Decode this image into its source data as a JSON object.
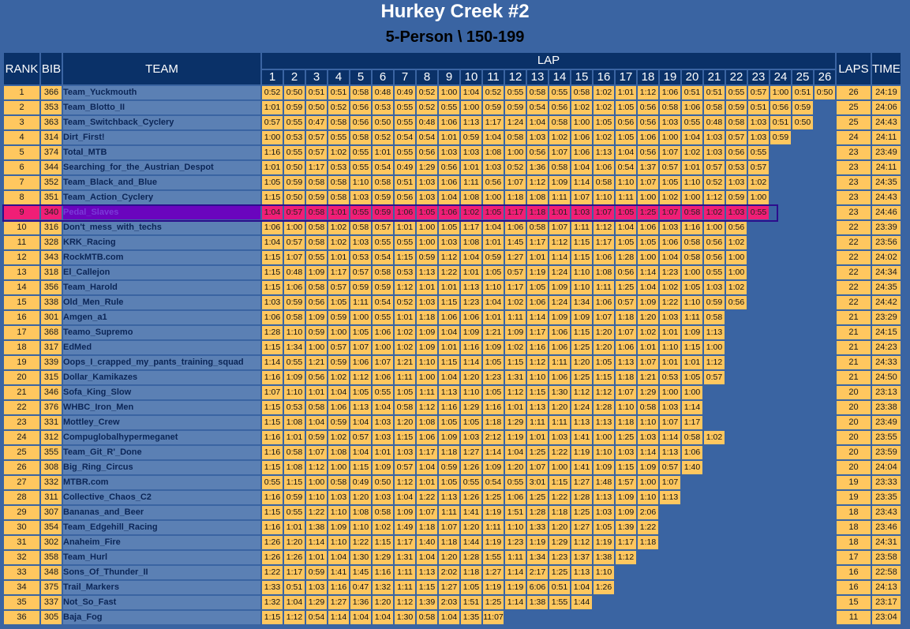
{
  "header": {
    "title": "Hurkey Creek #2",
    "subtitle": "5-Person \\ 150-199"
  },
  "columns": {
    "rank": "RANK",
    "bib": "BIB",
    "team": "TEAM",
    "lap": "LAP",
    "laps": "LAPS",
    "time": "TIME",
    "lap_numbers": [
      "1",
      "2",
      "3",
      "4",
      "5",
      "6",
      "7",
      "8",
      "9",
      "10",
      "11",
      "12",
      "13",
      "14",
      "15",
      "16",
      "17",
      "18",
      "19",
      "20",
      "21",
      "22",
      "23",
      "24",
      "25",
      "26"
    ]
  },
  "highlight_color": "#f01e76",
  "highlighted_rank": "9",
  "rows": [
    {
      "rank": "1",
      "bib": "366",
      "team": "Team_Yuckmouth",
      "splits": [
        "0:52",
        "0:50",
        "0:51",
        "0:51",
        "0:58",
        "0:48",
        "0:49",
        "0:52",
        "1:00",
        "1:04",
        "0:52",
        "0:55",
        "0:58",
        "0:55",
        "0:58",
        "1:02",
        "1:01",
        "1:12",
        "1:06",
        "0:51",
        "0:51",
        "0:55",
        "0:57",
        "1:00",
        "0:51",
        "0:50"
      ],
      "laps": "26",
      "time": "24:19"
    },
    {
      "rank": "2",
      "bib": "353",
      "team": "Team_Blotto_II",
      "splits": [
        "1:01",
        "0:59",
        "0:50",
        "0:52",
        "0:56",
        "0:53",
        "0:55",
        "0:52",
        "0:55",
        "1:00",
        "0:59",
        "0:59",
        "0:54",
        "0:56",
        "1:02",
        "1:02",
        "1:05",
        "0:56",
        "0:58",
        "1:06",
        "0:58",
        "0:59",
        "0:51",
        "0:56",
        "0:59"
      ],
      "laps": "25",
      "time": "24:06"
    },
    {
      "rank": "3",
      "bib": "363",
      "team": "Team_Switchback_Cyclery",
      "splits": [
        "0:57",
        "0:55",
        "0:47",
        "0:58",
        "0:56",
        "0:50",
        "0:55",
        "0:48",
        "1:06",
        "1:13",
        "1:17",
        "1:24",
        "1:04",
        "0:58",
        "1:00",
        "1:05",
        "0:56",
        "0:56",
        "1:03",
        "0:55",
        "0:48",
        "0:58",
        "1:03",
        "0:51",
        "0:50"
      ],
      "laps": "25",
      "time": "24:43"
    },
    {
      "rank": "4",
      "bib": "314",
      "team": "Dirt_First!",
      "splits": [
        "1:00",
        "0:53",
        "0:57",
        "0:55",
        "0:58",
        "0:52",
        "0:54",
        "0:54",
        "1:01",
        "0:59",
        "1:04",
        "0:58",
        "1:03",
        "1:02",
        "1:06",
        "1:02",
        "1:05",
        "1:06",
        "1:00",
        "1:04",
        "1:03",
        "0:57",
        "1:03",
        "0:59"
      ],
      "laps": "24",
      "time": "24:11"
    },
    {
      "rank": "5",
      "bib": "374",
      "team": "Total_MTB",
      "splits": [
        "1:16",
        "0:55",
        "0:57",
        "1:02",
        "0:55",
        "1:01",
        "0:55",
        "0:56",
        "1:03",
        "1:03",
        "1:08",
        "1:00",
        "0:56",
        "1:07",
        "1:06",
        "1:13",
        "1:04",
        "0:56",
        "1:07",
        "1:02",
        "1:03",
        "0:56",
        "0:55"
      ],
      "laps": "23",
      "time": "23:49"
    },
    {
      "rank": "6",
      "bib": "344",
      "team": "Searching_for_the_Austrian_Despot",
      "splits": [
        "1:01",
        "0:50",
        "1:17",
        "0:53",
        "0:55",
        "0:54",
        "0:49",
        "1:29",
        "0:56",
        "1:01",
        "1:03",
        "0:52",
        "1:36",
        "0:58",
        "1:04",
        "1:06",
        "0:54",
        "1:37",
        "0:57",
        "1:01",
        "0:57",
        "0:53",
        "0:57"
      ],
      "laps": "23",
      "time": "24:11"
    },
    {
      "rank": "7",
      "bib": "352",
      "team": "Team_Black_and_Blue",
      "splits": [
        "1:05",
        "0:59",
        "0:58",
        "0:58",
        "1:10",
        "0:58",
        "0:51",
        "1:03",
        "1:06",
        "1:11",
        "0:56",
        "1:07",
        "1:12",
        "1:09",
        "1:14",
        "0:58",
        "1:10",
        "1:07",
        "1:05",
        "1:10",
        "0:52",
        "1:03",
        "1:02"
      ],
      "laps": "23",
      "time": "24:35"
    },
    {
      "rank": "8",
      "bib": "351",
      "team": "Team_Action_Cyclery",
      "splits": [
        "1:15",
        "0:50",
        "0:59",
        "0:58",
        "1:03",
        "0:59",
        "0:56",
        "1:03",
        "1:04",
        "1:08",
        "1:00",
        "1:18",
        "1:08",
        "1:11",
        "1:07",
        "1:10",
        "1:11",
        "1:00",
        "1:02",
        "1:00",
        "1:12",
        "0:59",
        "1:00"
      ],
      "laps": "23",
      "time": "24:43"
    },
    {
      "rank": "9",
      "bib": "340",
      "team": "Pedal_Slaves",
      "splits": [
        "1:04",
        "0:57",
        "0:58",
        "1:01",
        "0:55",
        "0:59",
        "1:06",
        "1:05",
        "1:06",
        "1:02",
        "1:05",
        "1:17",
        "1:18",
        "1:01",
        "1:03",
        "1:07",
        "1:05",
        "1:25",
        "1:07",
        "0:58",
        "1:02",
        "1:03",
        "0:55"
      ],
      "laps": "23",
      "time": "24:46"
    },
    {
      "rank": "10",
      "bib": "316",
      "team": "Don't_mess_with_techs",
      "splits": [
        "1:06",
        "1:00",
        "0:58",
        "1:02",
        "0:58",
        "0:57",
        "1:01",
        "1:00",
        "1:05",
        "1:17",
        "1:04",
        "1:06",
        "0:58",
        "1:07",
        "1:11",
        "1:12",
        "1:04",
        "1:06",
        "1:03",
        "1:16",
        "1:00",
        "0:56"
      ],
      "laps": "22",
      "time": "23:39"
    },
    {
      "rank": "11",
      "bib": "328",
      "team": "KRK_Racing",
      "splits": [
        "1:04",
        "0:57",
        "0:58",
        "1:02",
        "1:03",
        "0:55",
        "0:55",
        "1:00",
        "1:03",
        "1:08",
        "1:01",
        "1:45",
        "1:17",
        "1:12",
        "1:15",
        "1:17",
        "1:05",
        "1:05",
        "1:06",
        "0:58",
        "0:56",
        "1:02"
      ],
      "laps": "22",
      "time": "23:56"
    },
    {
      "rank": "12",
      "bib": "343",
      "team": "RockMTB.com",
      "splits": [
        "1:15",
        "1:07",
        "0:55",
        "1:01",
        "0:53",
        "0:54",
        "1:15",
        "0:59",
        "1:12",
        "1:04",
        "0:59",
        "1:27",
        "1:01",
        "1:14",
        "1:15",
        "1:06",
        "1:28",
        "1:00",
        "1:04",
        "0:58",
        "0:56",
        "1:00"
      ],
      "laps": "22",
      "time": "24:02"
    },
    {
      "rank": "13",
      "bib": "318",
      "team": "El_Callejon",
      "splits": [
        "1:15",
        "0:48",
        "1:09",
        "1:17",
        "0:57",
        "0:58",
        "0:53",
        "1:13",
        "1:22",
        "1:01",
        "1:05",
        "0:57",
        "1:19",
        "1:24",
        "1:10",
        "1:08",
        "0:56",
        "1:14",
        "1:23",
        "1:00",
        "0:55",
        "1:00"
      ],
      "laps": "22",
      "time": "24:34"
    },
    {
      "rank": "14",
      "bib": "356",
      "team": "Team_Harold",
      "splits": [
        "1:15",
        "1:06",
        "0:58",
        "0:57",
        "0:59",
        "0:59",
        "1:12",
        "1:01",
        "1:01",
        "1:13",
        "1:10",
        "1:17",
        "1:05",
        "1:09",
        "1:10",
        "1:11",
        "1:25",
        "1:04",
        "1:02",
        "1:05",
        "1:03",
        "1:02"
      ],
      "laps": "22",
      "time": "24:35"
    },
    {
      "rank": "15",
      "bib": "338",
      "team": "Old_Men_Rule",
      "splits": [
        "1:03",
        "0:59",
        "0:56",
        "1:05",
        "1:11",
        "0:54",
        "0:52",
        "1:03",
        "1:15",
        "1:23",
        "1:04",
        "1:02",
        "1:06",
        "1:24",
        "1:34",
        "1:06",
        "0:57",
        "1:09",
        "1:22",
        "1:10",
        "0:59",
        "0:56"
      ],
      "laps": "22",
      "time": "24:42"
    },
    {
      "rank": "16",
      "bib": "301",
      "team": "Amgen_a1",
      "splits": [
        "1:06",
        "0:58",
        "1:09",
        "0:59",
        "1:00",
        "0:55",
        "1:01",
        "1:18",
        "1:06",
        "1:06",
        "1:01",
        "1:11",
        "1:14",
        "1:09",
        "1:09",
        "1:07",
        "1:18",
        "1:20",
        "1:03",
        "1:11",
        "0:58"
      ],
      "laps": "21",
      "time": "23:29"
    },
    {
      "rank": "17",
      "bib": "368",
      "team": "Teamo_Supremo",
      "splits": [
        "1:28",
        "1:10",
        "0:59",
        "1:00",
        "1:05",
        "1:06",
        "1:02",
        "1:09",
        "1:04",
        "1:09",
        "1:21",
        "1:09",
        "1:17",
        "1:06",
        "1:15",
        "1:20",
        "1:07",
        "1:02",
        "1:01",
        "1:09",
        "1:13"
      ],
      "laps": "21",
      "time": "24:15"
    },
    {
      "rank": "18",
      "bib": "317",
      "team": "EdMed",
      "splits": [
        "1:15",
        "1:34",
        "1:00",
        "0:57",
        "1:07",
        "1:00",
        "1:02",
        "1:09",
        "1:01",
        "1:16",
        "1:09",
        "1:02",
        "1:16",
        "1:06",
        "1:25",
        "1:20",
        "1:06",
        "1:01",
        "1:10",
        "1:15",
        "1:00"
      ],
      "laps": "21",
      "time": "24:23"
    },
    {
      "rank": "19",
      "bib": "339",
      "team": "Oops_I_crapped_my_pants_training_squad",
      "splits": [
        "1:14",
        "0:55",
        "1:21",
        "0:59",
        "1:06",
        "1:07",
        "1:21",
        "1:10",
        "1:15",
        "1:14",
        "1:05",
        "1:15",
        "1:12",
        "1:11",
        "1:20",
        "1:05",
        "1:13",
        "1:07",
        "1:01",
        "1:01",
        "1:12"
      ],
      "laps": "21",
      "time": "24:33"
    },
    {
      "rank": "20",
      "bib": "315",
      "team": "Dollar_Kamikazes",
      "splits": [
        "1:16",
        "1:09",
        "0:56",
        "1:02",
        "1:12",
        "1:06",
        "1:11",
        "1:00",
        "1:04",
        "1:20",
        "1:23",
        "1:31",
        "1:10",
        "1:06",
        "1:25",
        "1:15",
        "1:18",
        "1:21",
        "0:53",
        "1:05",
        "0:57"
      ],
      "laps": "21",
      "time": "24:50"
    },
    {
      "rank": "21",
      "bib": "346",
      "team": "Sofa_King_Slow",
      "splits": [
        "1:07",
        "1:10",
        "1:01",
        "1:04",
        "1:05",
        "0:55",
        "1:05",
        "1:11",
        "1:13",
        "1:10",
        "1:05",
        "1:12",
        "1:15",
        "1:30",
        "1:12",
        "1:12",
        "1:07",
        "1:29",
        "1:00",
        "1:00"
      ],
      "laps": "20",
      "time": "23:13"
    },
    {
      "rank": "22",
      "bib": "376",
      "team": "WHBC_Iron_Men",
      "splits": [
        "1:15",
        "0:53",
        "0:58",
        "1:06",
        "1:13",
        "1:04",
        "0:58",
        "1:12",
        "1:16",
        "1:29",
        "1:16",
        "1:01",
        "1:13",
        "1:20",
        "1:24",
        "1:28",
        "1:10",
        "0:58",
        "1:03",
        "1:14"
      ],
      "laps": "20",
      "time": "23:38"
    },
    {
      "rank": "23",
      "bib": "331",
      "team": "Mottley_Crew",
      "splits": [
        "1:15",
        "1:08",
        "1:04",
        "0:59",
        "1:04",
        "1:03",
        "1:20",
        "1:08",
        "1:05",
        "1:05",
        "1:18",
        "1:29",
        "1:11",
        "1:11",
        "1:13",
        "1:13",
        "1:18",
        "1:10",
        "1:07",
        "1:17"
      ],
      "laps": "20",
      "time": "23:49"
    },
    {
      "rank": "24",
      "bib": "312",
      "team": "Compuglobalhypermeganet",
      "splits": [
        "1:16",
        "1:01",
        "0:59",
        "1:02",
        "0:57",
        "1:03",
        "1:15",
        "1:06",
        "1:09",
        "1:03",
        "2:12",
        "1:19",
        "1:01",
        "1:03",
        "1:41",
        "1:00",
        "1:25",
        "1:03",
        "1:14",
        "0:58",
        "1:02"
      ],
      "laps": "20",
      "time": "23:55"
    },
    {
      "rank": "25",
      "bib": "355",
      "team": "Team_Git_R'_Done",
      "splits": [
        "1:16",
        "0:58",
        "1:07",
        "1:08",
        "1:04",
        "1:01",
        "1:03",
        "1:17",
        "1:18",
        "1:27",
        "1:14",
        "1:04",
        "1:25",
        "1:22",
        "1:19",
        "1:10",
        "1:03",
        "1:14",
        "1:13",
        "1:06"
      ],
      "laps": "20",
      "time": "23:59"
    },
    {
      "rank": "26",
      "bib": "308",
      "team": "Big_Ring_Circus",
      "splits": [
        "1:15",
        "1:08",
        "1:12",
        "1:00",
        "1:15",
        "1:09",
        "0:57",
        "1:04",
        "0:59",
        "1:26",
        "1:09",
        "1:20",
        "1:07",
        "1:00",
        "1:41",
        "1:09",
        "1:15",
        "1:09",
        "0:57",
        "1:40"
      ],
      "laps": "20",
      "time": "24:04"
    },
    {
      "rank": "27",
      "bib": "332",
      "team": "MTBR.com",
      "splits": [
        "0:55",
        "1:15",
        "1:00",
        "0:58",
        "0:49",
        "0:50",
        "1:12",
        "1:01",
        "1:05",
        "0:55",
        "0:54",
        "0:55",
        "3:01",
        "1:15",
        "1:27",
        "1:48",
        "1:57",
        "1:00",
        "1:07"
      ],
      "laps": "19",
      "time": "23:33"
    },
    {
      "rank": "28",
      "bib": "311",
      "team": "Collective_Chaos_C2",
      "splits": [
        "1:16",
        "0:59",
        "1:10",
        "1:03",
        "1:20",
        "1:03",
        "1:04",
        "1:22",
        "1:13",
        "1:26",
        "1:25",
        "1:06",
        "1:25",
        "1:22",
        "1:28",
        "1:13",
        "1:09",
        "1:10",
        "1:13"
      ],
      "laps": "19",
      "time": "23:35"
    },
    {
      "rank": "29",
      "bib": "307",
      "team": "Bananas_and_Beer",
      "splits": [
        "1:15",
        "0:55",
        "1:22",
        "1:10",
        "1:08",
        "0:58",
        "1:09",
        "1:07",
        "1:11",
        "1:41",
        "1:19",
        "1:51",
        "1:28",
        "1:18",
        "1:25",
        "1:03",
        "1:09",
        "2:06"
      ],
      "laps": "18",
      "time": "23:43"
    },
    {
      "rank": "30",
      "bib": "354",
      "team": "Team_Edgehill_Racing",
      "splits": [
        "1:16",
        "1:01",
        "1:38",
        "1:09",
        "1:10",
        "1:02",
        "1:49",
        "1:18",
        "1:07",
        "1:20",
        "1:11",
        "1:10",
        "1:33",
        "1:20",
        "1:27",
        "1:05",
        "1:39",
        "1:22"
      ],
      "laps": "18",
      "time": "23:46"
    },
    {
      "rank": "31",
      "bib": "302",
      "team": "Anaheim_Fire",
      "splits": [
        "1:26",
        "1:20",
        "1:14",
        "1:10",
        "1:22",
        "1:15",
        "1:17",
        "1:40",
        "1:18",
        "1:44",
        "1:19",
        "1:23",
        "1:19",
        "1:29",
        "1:12",
        "1:19",
        "1:17",
        "1:18"
      ],
      "laps": "18",
      "time": "24:31"
    },
    {
      "rank": "32",
      "bib": "358",
      "team": "Team_Hurl",
      "splits": [
        "1:26",
        "1:26",
        "1:01",
        "1:04",
        "1:30",
        "1:29",
        "1:31",
        "1:04",
        "1:20",
        "1:28",
        "1:55",
        "1:11",
        "1:34",
        "1:23",
        "1:37",
        "1:38",
        "1:12"
      ],
      "laps": "17",
      "time": "23:58"
    },
    {
      "rank": "33",
      "bib": "348",
      "team": "Sons_Of_Thunder_II",
      "splits": [
        "1:22",
        "1:17",
        "0:59",
        "1:41",
        "1:45",
        "1:16",
        "1:11",
        "1:13",
        "2:02",
        "1:18",
        "1:27",
        "1:14",
        "2:17",
        "1:25",
        "1:13",
        "1:10"
      ],
      "laps": "16",
      "time": "22:58"
    },
    {
      "rank": "34",
      "bib": "375",
      "team": "Trail_Markers",
      "splits": [
        "1:33",
        "0:51",
        "1:03",
        "1:16",
        "0:47",
        "1:32",
        "1:11",
        "1:15",
        "1:27",
        "1:05",
        "1:19",
        "1:19",
        "6:06",
        "0:51",
        "1:04",
        "1:26"
      ],
      "laps": "16",
      "time": "24:13"
    },
    {
      "rank": "35",
      "bib": "337",
      "team": "Not_So_Fast",
      "splits": [
        "1:32",
        "1:04",
        "1:29",
        "1:27",
        "1:36",
        "1:20",
        "1:12",
        "1:39",
        "2:03",
        "1:51",
        "1:25",
        "1:14",
        "1:38",
        "1:55",
        "1:44"
      ],
      "laps": "15",
      "time": "23:17"
    },
    {
      "rank": "36",
      "bib": "305",
      "team": "Baja_Fog",
      "splits": [
        "1:15",
        "1:12",
        "0:54",
        "1:14",
        "1:04",
        "1:04",
        "1:30",
        "0:58",
        "1:04",
        "1:35",
        "11:07"
      ],
      "laps": "11",
      "time": "23:04"
    }
  ]
}
